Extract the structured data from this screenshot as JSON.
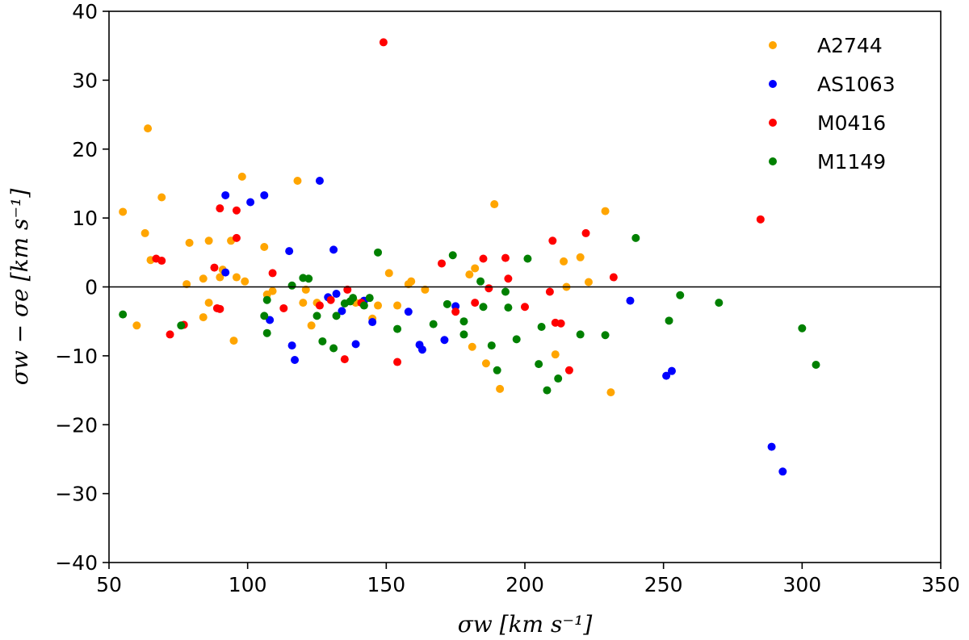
{
  "chart_data": {
    "type": "scatter",
    "xlabel": "σw [km s⁻¹]",
    "ylabel": "σw − σe [km s⁻¹]",
    "xlim": [
      50,
      350
    ],
    "ylim": [
      -40,
      40
    ],
    "xticks": [
      50,
      100,
      150,
      200,
      250,
      300,
      350
    ],
    "yticks": [
      -40,
      -30,
      -20,
      -10,
      0,
      10,
      20,
      30,
      40
    ],
    "xtick_labels": [
      "50",
      "100",
      "150",
      "200",
      "250",
      "300",
      "350"
    ],
    "ytick_labels": [
      "−40",
      "−30",
      "−20",
      "−10",
      "0",
      "10",
      "20",
      "30",
      "40"
    ],
    "reference_line_y": 0,
    "grid": false,
    "legend_position": "top-right",
    "series": [
      {
        "name": "A2744",
        "color": "#ffa500",
        "points": [
          [
            55,
            10.9
          ],
          [
            60,
            -5.6
          ],
          [
            63,
            7.8
          ],
          [
            64,
            23
          ],
          [
            65,
            3.9
          ],
          [
            69,
            13
          ],
          [
            78,
            0.4
          ],
          [
            79,
            6.4
          ],
          [
            84,
            1.2
          ],
          [
            84,
            -4.4
          ],
          [
            86,
            6.7
          ],
          [
            86,
            -2.3
          ],
          [
            90,
            1.4
          ],
          [
            91,
            2.5
          ],
          [
            94,
            6.7
          ],
          [
            95,
            -7.8
          ],
          [
            96,
            1.4
          ],
          [
            98,
            16
          ],
          [
            99,
            0.8
          ],
          [
            106,
            5.8
          ],
          [
            107,
            -1.1
          ],
          [
            109,
            -0.6
          ],
          [
            118,
            15.4
          ],
          [
            120,
            -2.3
          ],
          [
            121,
            -0.4
          ],
          [
            123,
            -5.6
          ],
          [
            125,
            -2.3
          ],
          [
            139,
            -2.3
          ],
          [
            145,
            -4.6
          ],
          [
            147,
            -2.7
          ],
          [
            151,
            2
          ],
          [
            154,
            -2.7
          ],
          [
            158,
            0.4
          ],
          [
            159,
            0.8
          ],
          [
            164,
            -0.4
          ],
          [
            180,
            1.8
          ],
          [
            181,
            -8.7
          ],
          [
            182,
            2.7
          ],
          [
            186,
            -11.1
          ],
          [
            189,
            12
          ],
          [
            191,
            -14.8
          ],
          [
            211,
            -9.8
          ],
          [
            214,
            3.7
          ],
          [
            215,
            0
          ],
          [
            220,
            4.3
          ],
          [
            223,
            0.7
          ],
          [
            229,
            11
          ],
          [
            231,
            -15.3
          ]
        ]
      },
      {
        "name": "AS1063",
        "color": "#0000ff",
        "points": [
          [
            92,
            13.3
          ],
          [
            92,
            2.1
          ],
          [
            101,
            12.3
          ],
          [
            106,
            13.3
          ],
          [
            108,
            -4.8
          ],
          [
            115,
            5.2
          ],
          [
            116,
            -8.5
          ],
          [
            117,
            -10.6
          ],
          [
            126,
            15.4
          ],
          [
            129,
            -1.5
          ],
          [
            131,
            5.4
          ],
          [
            132,
            -1
          ],
          [
            134,
            -3.5
          ],
          [
            139,
            -8.3
          ],
          [
            142,
            -2
          ],
          [
            145,
            -5.1
          ],
          [
            158,
            -3.6
          ],
          [
            162,
            -8.4
          ],
          [
            163,
            -9.1
          ],
          [
            171,
            -7.7
          ],
          [
            175,
            -2.8
          ],
          [
            238,
            -2
          ],
          [
            251,
            -12.9
          ],
          [
            253,
            -12.2
          ],
          [
            289,
            -23.2
          ],
          [
            293,
            -26.8
          ]
        ]
      },
      {
        "name": "M0416",
        "color": "#ff0000",
        "points": [
          [
            67,
            4.1
          ],
          [
            69,
            3.8
          ],
          [
            72,
            -6.9
          ],
          [
            77,
            -5.5
          ],
          [
            88,
            2.8
          ],
          [
            89,
            -3.1
          ],
          [
            90,
            -3.2
          ],
          [
            90,
            11.4
          ],
          [
            96,
            7.1
          ],
          [
            96,
            11.1
          ],
          [
            109,
            2
          ],
          [
            113,
            -3.1
          ],
          [
            126,
            -2.7
          ],
          [
            130,
            -1.9
          ],
          [
            135,
            -10.5
          ],
          [
            136,
            -0.4
          ],
          [
            141,
            -2.3
          ],
          [
            149,
            35.5
          ],
          [
            154,
            -10.9
          ],
          [
            170,
            3.4
          ],
          [
            175,
            -3.6
          ],
          [
            182,
            -2.3
          ],
          [
            185,
            4.1
          ],
          [
            187,
            -0.2
          ],
          [
            193,
            4.2
          ],
          [
            194,
            1.2
          ],
          [
            200,
            -2.9
          ],
          [
            209,
            -0.7
          ],
          [
            210,
            6.7
          ],
          [
            211,
            -5.2
          ],
          [
            213,
            -5.3
          ],
          [
            216,
            -12.1
          ],
          [
            222,
            7.8
          ],
          [
            232,
            1.4
          ],
          [
            285,
            9.8
          ]
        ]
      },
      {
        "name": "M1149",
        "color": "#008000",
        "points": [
          [
            55,
            -4
          ],
          [
            76,
            -5.6
          ],
          [
            106,
            -4.2
          ],
          [
            107,
            -1.9
          ],
          [
            107,
            -6.7
          ],
          [
            116,
            0.2
          ],
          [
            120,
            1.3
          ],
          [
            122,
            1.2
          ],
          [
            125,
            -4.2
          ],
          [
            127,
            -7.9
          ],
          [
            131,
            -8.9
          ],
          [
            132,
            -4.2
          ],
          [
            135,
            -2.4
          ],
          [
            137,
            -2.1
          ],
          [
            138,
            -1.6
          ],
          [
            142,
            -2.7
          ],
          [
            144,
            -1.6
          ],
          [
            147,
            5
          ],
          [
            154,
            -6.1
          ],
          [
            167,
            -5.4
          ],
          [
            172,
            -2.5
          ],
          [
            174,
            4.6
          ],
          [
            178,
            -5
          ],
          [
            178,
            -6.9
          ],
          [
            184,
            0.8
          ],
          [
            185,
            -2.9
          ],
          [
            188,
            -8.5
          ],
          [
            190,
            -12.1
          ],
          [
            193,
            -0.7
          ],
          [
            194,
            -3
          ],
          [
            197,
            -7.6
          ],
          [
            201,
            4.1
          ],
          [
            205,
            -11.2
          ],
          [
            206,
            -5.8
          ],
          [
            208,
            -15
          ],
          [
            212,
            -13.3
          ],
          [
            220,
            -6.9
          ],
          [
            229,
            -7
          ],
          [
            240,
            7.1
          ],
          [
            252,
            -4.9
          ],
          [
            256,
            -1.2
          ],
          [
            270,
            -2.3
          ],
          [
            300,
            -6
          ],
          [
            305,
            -11.3
          ]
        ]
      }
    ]
  }
}
